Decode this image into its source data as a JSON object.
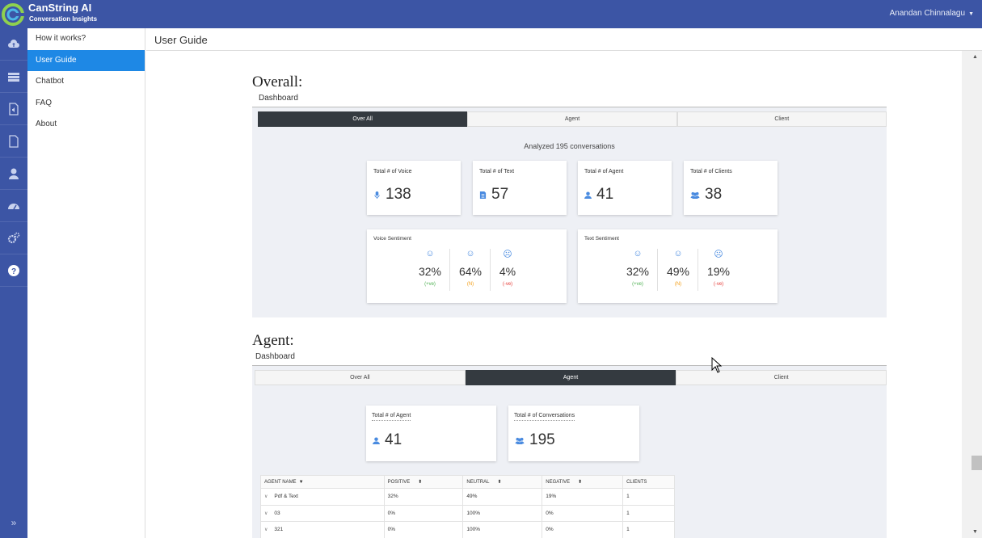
{
  "app": {
    "name": "CanString AI",
    "subtitle": "Conversation Insights",
    "user": "Anandan Chinnalagu",
    "brand_color": "#3c55a5",
    "accent_color": "#1e88e5"
  },
  "rail": {
    "icons": [
      "cloud-upload-icon",
      "server-icon",
      "audio-file-icon",
      "document-icon",
      "user-icon",
      "dashboard-gauge-icon",
      "settings-gears-icon",
      "help-icon"
    ],
    "expand_label": "»"
  },
  "nav": {
    "items": [
      {
        "label": "How it works?"
      },
      {
        "label": "User Guide"
      },
      {
        "label": "Chatbot"
      },
      {
        "label": "FAQ"
      },
      {
        "label": "About"
      }
    ],
    "active_index": 1
  },
  "page": {
    "title": "User Guide"
  },
  "overall": {
    "heading": "Overall:",
    "subheading": "Dashboard",
    "tabs": [
      "Over All",
      "Agent",
      "Client"
    ],
    "active_tab": 0,
    "analyzed": "Analyzed 195 conversations",
    "stats": [
      {
        "label": "Total # of Voice",
        "value": "138",
        "icon": "microphone-icon"
      },
      {
        "label": "Total # of Text",
        "value": "57",
        "icon": "text-document-icon"
      },
      {
        "label": "Total # of Agent",
        "value": "41",
        "icon": "user-icon"
      },
      {
        "label": "Total # of Clients",
        "value": "38",
        "icon": "users-icon"
      }
    ],
    "voice_sentiment": {
      "label": "Voice Sentiment",
      "items": [
        {
          "pct": "32%",
          "tag": "(+ve)",
          "face": "happy-face-icon",
          "color": "#4caf50"
        },
        {
          "pct": "64%",
          "tag": "(N)",
          "face": "neutral-face-icon",
          "color": "#f39c12"
        },
        {
          "pct": "4%",
          "tag": "(-ve)",
          "face": "sad-face-icon",
          "color": "#e53935"
        }
      ]
    },
    "text_sentiment": {
      "label": "Text Sentiment",
      "items": [
        {
          "pct": "32%",
          "tag": "(+ve)",
          "face": "happy-face-icon",
          "color": "#4caf50"
        },
        {
          "pct": "49%",
          "tag": "(N)",
          "face": "neutral-face-icon",
          "color": "#f39c12"
        },
        {
          "pct": "19%",
          "tag": "(-ve)",
          "face": "sad-face-icon",
          "color": "#e53935"
        }
      ]
    }
  },
  "agent": {
    "heading": "Agent:",
    "subheading": "Dashboard",
    "tabs": [
      "Over All",
      "Agent",
      "Client"
    ],
    "active_tab": 1,
    "stats": [
      {
        "label": "Total # of Agent",
        "value": "41",
        "icon": "user-icon"
      },
      {
        "label": "Total # of Conversations",
        "value": "195",
        "icon": "users-icon"
      }
    ],
    "table": {
      "headers": [
        "AGENT NAME",
        "POSITIVE",
        "NEUTRAL",
        "NEGATIVE",
        "CLIENTS"
      ],
      "rows": [
        [
          "Pdf & Text",
          "32%",
          "49%",
          "19%",
          "1"
        ],
        [
          "03",
          "0%",
          "100%",
          "0%",
          "1"
        ],
        [
          "321",
          "0%",
          "100%",
          "0%",
          "1"
        ]
      ]
    }
  }
}
